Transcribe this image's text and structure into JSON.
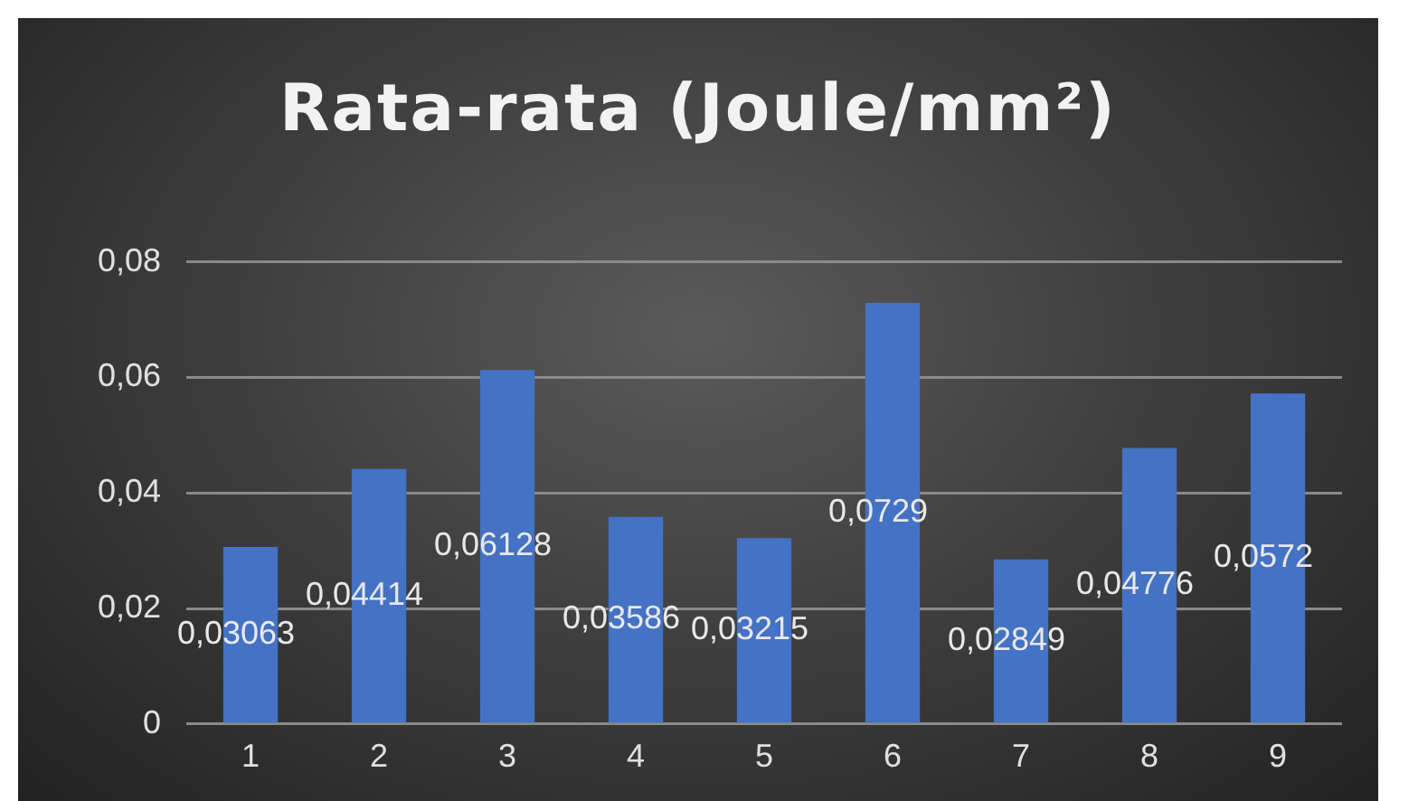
{
  "chart_data": {
    "type": "bar",
    "title": "Rata-rata (Joule/mm²)",
    "categories": [
      "1",
      "2",
      "3",
      "4",
      "5",
      "6",
      "7",
      "8",
      "9"
    ],
    "values": [
      0.03063,
      0.04414,
      0.06128,
      0.03586,
      0.03215,
      0.0729,
      0.02849,
      0.04776,
      0.0572
    ],
    "value_labels": [
      "0,03063",
      "0,04414",
      "0,06128",
      "0,03586",
      "0,03215",
      "0,0729",
      "0,02849",
      "0,04776",
      "0,0572"
    ],
    "color": "#4472c4",
    "ylim": [
      0,
      0.08
    ],
    "yticks": [
      {
        "value": 0,
        "label": "0"
      },
      {
        "value": 0.02,
        "label": "0,02"
      },
      {
        "value": 0.04,
        "label": "0,04"
      },
      {
        "value": 0.06,
        "label": "0,06"
      },
      {
        "value": 0.08,
        "label": "0,08"
      }
    ],
    "grid": "y"
  }
}
